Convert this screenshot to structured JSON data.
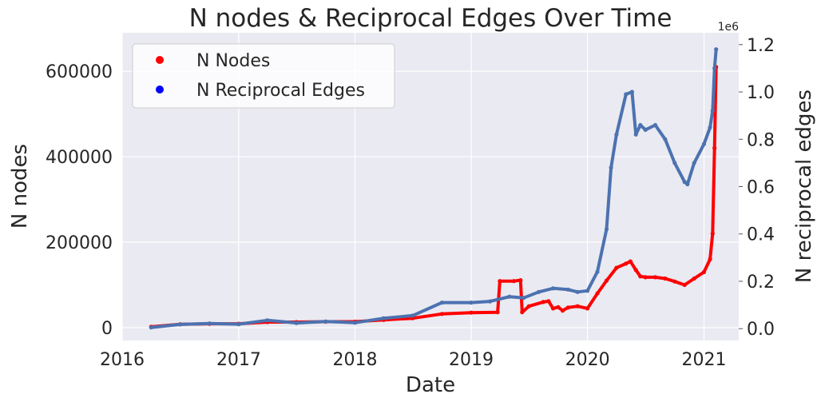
{
  "chart_data": {
    "type": "scatter",
    "title": "N nodes & Reciprocal Edges Over Time",
    "xlabel": "Date",
    "ylabel_left": "N nodes",
    "ylabel_right": "N reciprocal edges",
    "right_axis_offset_label": "1e6",
    "x_ticks": [
      "2016",
      "2017",
      "2018",
      "2019",
      "2020",
      "2021"
    ],
    "y_left_ticks": [
      "0",
      "200000",
      "400000",
      "600000"
    ],
    "y_right_ticks": [
      "0.0",
      "0.2",
      "0.4",
      "0.6",
      "0.8",
      "1.0",
      "1.2"
    ],
    "xlim": [
      "2016-01-01",
      "2021-04-20"
    ],
    "ylim_left": [
      -30000,
      690000
    ],
    "ylim_right": [
      -0.05,
      1.25
    ],
    "grid": true,
    "legend_position": "upper-left",
    "colors": {
      "nodes": "#ff0000",
      "edges": "#4c72b0",
      "legend_edges_marker": "#0000ff",
      "background": "#eaeaf2"
    },
    "series": [
      {
        "name": "N Nodes",
        "axis": "left",
        "x": [
          "2016-04-01",
          "2016-07-01",
          "2016-10-01",
          "2017-01-01",
          "2017-04-01",
          "2017-07-01",
          "2017-10-01",
          "2018-01-01",
          "2018-04-01",
          "2018-07-01",
          "2018-10-01",
          "2019-01-01",
          "2019-03-25",
          "2019-04-01",
          "2019-05-15",
          "2019-06-05",
          "2019-06-10",
          "2019-07-01",
          "2019-08-15",
          "2019-09-01",
          "2019-09-15",
          "2019-10-01",
          "2019-10-15",
          "2019-11-01",
          "2019-12-01",
          "2020-01-01",
          "2020-02-01",
          "2020-03-01",
          "2020-04-01",
          "2020-05-01",
          "2020-05-15",
          "2020-06-01",
          "2020-06-15",
          "2020-07-01",
          "2020-08-01",
          "2020-09-01",
          "2020-10-01",
          "2020-11-01",
          "2020-12-01",
          "2021-01-01",
          "2021-01-20",
          "2021-01-28",
          "2021-02-03",
          "2021-02-08"
        ],
        "y": [
          2000,
          8000,
          9000,
          9000,
          13000,
          13000,
          14000,
          14000,
          18000,
          22000,
          32000,
          35000,
          36000,
          109000,
          109000,
          111000,
          36000,
          50000,
          60000,
          62000,
          45000,
          48000,
          40000,
          47000,
          50000,
          45000,
          80000,
          110000,
          140000,
          150000,
          155000,
          135000,
          120000,
          118000,
          118000,
          115000,
          108000,
          100000,
          115000,
          130000,
          160000,
          220000,
          420000,
          610000
        ]
      },
      {
        "name": "N Reciprocal Edges",
        "axis": "right",
        "x": [
          "2016-04-01",
          "2016-07-01",
          "2016-10-01",
          "2017-01-01",
          "2017-04-01",
          "2017-07-01",
          "2017-10-01",
          "2018-01-01",
          "2018-04-01",
          "2018-07-01",
          "2018-10-01",
          "2019-01-01",
          "2019-03-01",
          "2019-05-01",
          "2019-06-15",
          "2019-08-01",
          "2019-09-15",
          "2019-11-01",
          "2019-12-01",
          "2020-01-01",
          "2020-02-01",
          "2020-03-01",
          "2020-03-15",
          "2020-04-01",
          "2020-05-01",
          "2020-05-20",
          "2020-06-01",
          "2020-06-15",
          "2020-07-01",
          "2020-08-01",
          "2020-09-01",
          "2020-10-01",
          "2020-11-01",
          "2020-11-10",
          "2020-12-01",
          "2021-01-01",
          "2021-01-20",
          "2021-01-28",
          "2021-02-03",
          "2021-02-08"
        ],
        "y": [
          0.005,
          0.018,
          0.022,
          0.019,
          0.035,
          0.024,
          0.03,
          0.025,
          0.044,
          0.055,
          0.11,
          0.11,
          0.115,
          0.135,
          0.13,
          0.155,
          0.17,
          0.165,
          0.155,
          0.16,
          0.24,
          0.42,
          0.68,
          0.82,
          0.99,
          1.0,
          0.82,
          0.86,
          0.84,
          0.86,
          0.8,
          0.7,
          0.62,
          0.61,
          0.7,
          0.78,
          0.85,
          0.92,
          1.1,
          1.18
        ]
      }
    ]
  }
}
